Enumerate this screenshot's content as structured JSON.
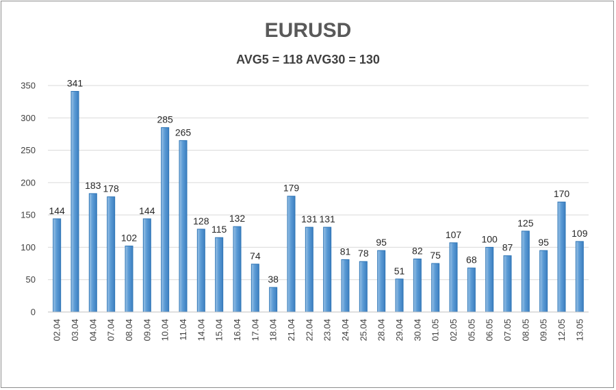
{
  "chart_data": {
    "type": "bar",
    "title": "EURUSD",
    "subtitle": "AVG5 = 118 AVG30 = 130",
    "categories": [
      "02.04",
      "03.04",
      "04.04",
      "07.04",
      "08.04",
      "09.04",
      "10.04",
      "11.04",
      "14.04",
      "15.04",
      "16.04",
      "17.04",
      "18.04",
      "21.04",
      "22.04",
      "23.04",
      "24.04",
      "25.04",
      "28.04",
      "29.04",
      "30.04",
      "01.05",
      "02.05",
      "05.05",
      "06.05",
      "07.05",
      "08.05",
      "09.05",
      "12.05",
      "13.05"
    ],
    "values": [
      144,
      341,
      183,
      178,
      102,
      144,
      285,
      265,
      128,
      115,
      132,
      74,
      38,
      179,
      131,
      131,
      81,
      78,
      95,
      51,
      82,
      75,
      107,
      68,
      100,
      87,
      125,
      95,
      170,
      109
    ],
    "ylim": [
      0,
      350
    ],
    "yticks": [
      0,
      50,
      100,
      150,
      200,
      250,
      300,
      350
    ],
    "grid": true,
    "bar_color": "#5b9bd5",
    "bar_edge_color": "#2e75b6"
  }
}
